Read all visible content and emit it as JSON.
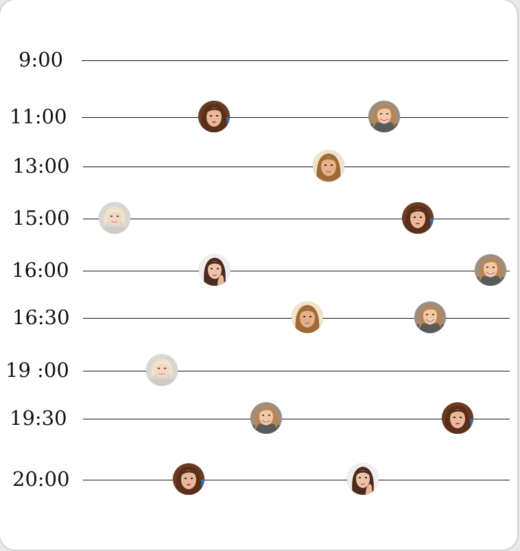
{
  "schedule": {
    "rows": [
      {
        "time": "9:00",
        "avatars": []
      },
      {
        "time": "11:00",
        "avatars": [
          "person-red-lips",
          "person-smiling-gray-top"
        ]
      },
      {
        "time": "13:00",
        "avatars": [
          "person-blonde-light"
        ]
      },
      {
        "time": "15:00",
        "avatars": [
          "person-platinum-bob",
          "person-red-lips"
        ]
      },
      {
        "time": "16:00",
        "avatars": [
          "person-hand-on-face",
          "person-smiling-gray-top"
        ]
      },
      {
        "time": "16:30",
        "avatars": [
          "person-blonde-light",
          "person-smiling-gray-top"
        ]
      },
      {
        "time": "19 :00",
        "avatars": [
          "person-platinum-bob"
        ]
      },
      {
        "time": "19:30",
        "avatars": [
          "person-smiling-gray-top",
          "person-red-lips"
        ]
      },
      {
        "time": "20:00",
        "avatars": [
          "person-red-lips",
          "person-hand-on-face"
        ]
      }
    ]
  },
  "colors": {
    "card_background": "#ffffff",
    "line": "#111111",
    "text": "#111111"
  }
}
